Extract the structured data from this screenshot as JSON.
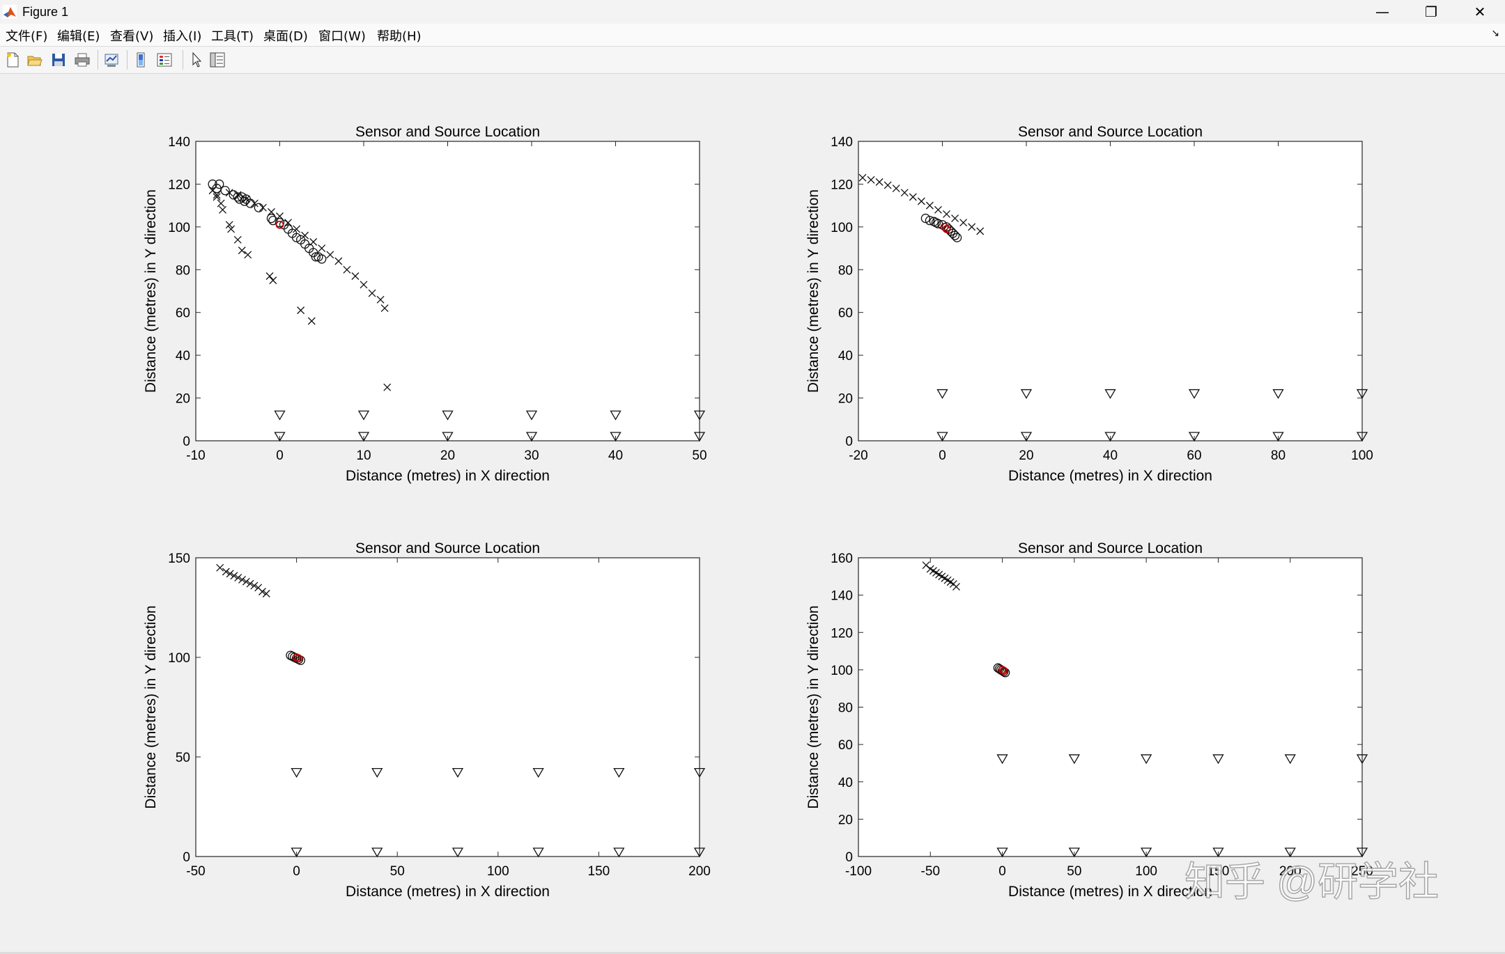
{
  "window": {
    "title": "Figure 1"
  },
  "menu": [
    "文件(F)",
    "编辑(E)",
    "查看(V)",
    "插入(I)",
    "工具(T)",
    "桌面(D)",
    "窗口(W)",
    "帮助(H)"
  ],
  "toolbar_icons": [
    "new-figure-icon",
    "open-file-icon",
    "save-icon",
    "print-icon",
    "link-plot-icon",
    "insert-colorbar-icon",
    "insert-legend-icon",
    "edit-plot-pointer-icon",
    "property-inspector-icon"
  ],
  "watermark": "知乎 @研学社",
  "chart_data": [
    {
      "type": "scatter",
      "title": "Sensor and Source Location",
      "xlabel": "Distance (metres) in X direction",
      "ylabel": "Distance (metres) in Y direction",
      "xlim": [
        -10,
        50
      ],
      "ylim": [
        0,
        140
      ],
      "xticks": [
        -10,
        0,
        10,
        20,
        30,
        40,
        50
      ],
      "yticks": [
        0,
        20,
        40,
        60,
        80,
        100,
        120,
        140
      ],
      "sensors": [
        [
          0,
          0
        ],
        [
          10,
          0
        ],
        [
          20,
          0
        ],
        [
          30,
          0
        ],
        [
          40,
          0
        ],
        [
          50,
          0
        ],
        [
          0,
          10
        ],
        [
          10,
          10
        ],
        [
          20,
          10
        ],
        [
          30,
          10
        ],
        [
          40,
          10
        ],
        [
          50,
          10
        ]
      ],
      "estimates_x": [
        [
          -7.5,
          114
        ],
        [
          -7,
          111
        ],
        [
          -6.8,
          108
        ],
        [
          -6,
          101
        ],
        [
          -5.8,
          99
        ],
        [
          -5,
          94
        ],
        [
          -4.5,
          89
        ],
        [
          -3.8,
          87
        ],
        [
          -1.2,
          77
        ],
        [
          -0.8,
          75
        ],
        [
          2.5,
          61
        ],
        [
          3.8,
          56
        ],
        [
          12.8,
          25
        ],
        [
          -8,
          117
        ],
        [
          -7.5,
          115
        ],
        [
          -6,
          116
        ],
        [
          -5,
          115
        ],
        [
          -4,
          113
        ],
        [
          -3,
          111
        ],
        [
          -2,
          109
        ],
        [
          -1,
          107
        ],
        [
          0,
          105
        ],
        [
          1,
          102
        ],
        [
          2,
          99
        ],
        [
          3,
          96
        ],
        [
          4,
          93
        ],
        [
          5,
          90
        ],
        [
          6,
          87
        ],
        [
          7,
          84
        ],
        [
          8,
          80
        ],
        [
          9,
          77
        ],
        [
          10,
          73
        ],
        [
          11,
          69
        ],
        [
          12,
          66
        ],
        [
          12.5,
          62
        ]
      ],
      "estimates_o": [
        [
          -8,
          120
        ],
        [
          -7.5,
          118
        ],
        [
          -7.2,
          120
        ],
        [
          -6.5,
          117
        ],
        [
          -5.5,
          115
        ],
        [
          -5,
          114
        ],
        [
          -4.8,
          113
        ],
        [
          -4.5,
          114
        ],
        [
          -4.2,
          112
        ],
        [
          -4,
          113
        ],
        [
          -3.5,
          111
        ],
        [
          -2.5,
          109
        ],
        [
          -1,
          104
        ],
        [
          -0.8,
          103
        ],
        [
          0,
          102
        ],
        [
          0.5,
          101
        ],
        [
          1,
          99
        ],
        [
          1.5,
          97
        ],
        [
          2,
          95
        ],
        [
          2.5,
          94
        ],
        [
          3,
          92
        ],
        [
          3.5,
          90
        ],
        [
          4,
          88
        ],
        [
          4.3,
          86
        ],
        [
          4.6,
          86
        ],
        [
          5,
          85
        ]
      ],
      "source": [
        [
          0,
          101
        ]
      ]
    },
    {
      "type": "scatter",
      "title": "Sensor and Source Location",
      "xlabel": "Distance (metres) in X direction",
      "ylabel": "Distance (metres) in Y direction",
      "xlim": [
        -20,
        100
      ],
      "ylim": [
        0,
        140
      ],
      "xticks": [
        -20,
        0,
        20,
        40,
        60,
        80,
        100
      ],
      "yticks": [
        0,
        20,
        40,
        60,
        80,
        100,
        120,
        140
      ],
      "sensors": [
        [
          0,
          0
        ],
        [
          20,
          0
        ],
        [
          40,
          0
        ],
        [
          60,
          0
        ],
        [
          80,
          0
        ],
        [
          100,
          0
        ],
        [
          0,
          20
        ],
        [
          20,
          20
        ],
        [
          40,
          20
        ],
        [
          60,
          20
        ],
        [
          80,
          20
        ],
        [
          100,
          20
        ]
      ],
      "estimates_x": [
        [
          -19,
          123
        ],
        [
          -17,
          122
        ],
        [
          -15,
          121
        ],
        [
          -13,
          119.5
        ],
        [
          -11,
          118
        ],
        [
          -9,
          116
        ],
        [
          -7,
          114
        ],
        [
          -5,
          112
        ],
        [
          -3,
          110
        ],
        [
          -1,
          108
        ],
        [
          1,
          106
        ],
        [
          3,
          104
        ],
        [
          5,
          102
        ],
        [
          7,
          100
        ],
        [
          9,
          98
        ]
      ],
      "estimates_o": [
        [
          -4,
          104
        ],
        [
          -3,
          103
        ],
        [
          -2,
          102.5
        ],
        [
          -1.5,
          102
        ],
        [
          -1,
          101.5
        ],
        [
          0,
          101
        ],
        [
          1,
          100
        ],
        [
          1.5,
          99
        ],
        [
          2,
          98
        ],
        [
          2.5,
          97
        ],
        [
          3,
          96
        ],
        [
          3.5,
          95
        ]
      ],
      "source": [
        [
          0.5,
          100
        ],
        [
          1,
          99
        ]
      ]
    },
    {
      "type": "scatter",
      "title": "Sensor and Source Location",
      "xlabel": "Distance (metres) in X direction",
      "ylabel": "Distance (metres) in Y direction",
      "xlim": [
        -50,
        200
      ],
      "ylim": [
        0,
        150
      ],
      "xticks": [
        -50,
        0,
        50,
        100,
        150,
        200
      ],
      "yticks": [
        0,
        50,
        100,
        150
      ],
      "sensors": [
        [
          0,
          0
        ],
        [
          40,
          0
        ],
        [
          80,
          0
        ],
        [
          120,
          0
        ],
        [
          160,
          0
        ],
        [
          200,
          0
        ],
        [
          0,
          40
        ],
        [
          40,
          40
        ],
        [
          80,
          40
        ],
        [
          120,
          40
        ],
        [
          160,
          40
        ],
        [
          200,
          40
        ]
      ],
      "estimates_x": [
        [
          -38,
          145
        ],
        [
          -35,
          143
        ],
        [
          -33,
          142
        ],
        [
          -31,
          141
        ],
        [
          -29,
          140
        ],
        [
          -27,
          139
        ],
        [
          -25,
          138
        ],
        [
          -23,
          137
        ],
        [
          -21,
          136
        ],
        [
          -19,
          135
        ],
        [
          -17,
          133
        ],
        [
          -15,
          132
        ]
      ],
      "estimates_o": [
        [
          -3,
          101
        ],
        [
          -2,
          100.5
        ],
        [
          -1,
          100
        ],
        [
          0,
          99.5
        ],
        [
          1,
          99
        ],
        [
          2,
          98.5
        ]
      ],
      "source": [
        [
          0,
          100
        ],
        [
          1,
          99.5
        ]
      ]
    },
    {
      "type": "scatter",
      "title": "Sensor and Source Location",
      "xlabel": "Distance (metres) in X direction",
      "ylabel": "Distance (metres) in Y direction",
      "xlim": [
        -100,
        250
      ],
      "ylim": [
        0,
        160
      ],
      "xticks": [
        -100,
        -50,
        0,
        50,
        100,
        150,
        200,
        250
      ],
      "yticks": [
        0,
        20,
        40,
        60,
        80,
        100,
        120,
        140,
        160
      ],
      "sensors": [
        [
          0,
          0
        ],
        [
          50,
          0
        ],
        [
          100,
          0
        ],
        [
          150,
          0
        ],
        [
          200,
          0
        ],
        [
          250,
          0
        ],
        [
          0,
          50
        ],
        [
          50,
          50
        ],
        [
          100,
          50
        ],
        [
          150,
          50
        ],
        [
          200,
          50
        ],
        [
          250,
          50
        ]
      ],
      "estimates_x": [
        [
          -53,
          156
        ],
        [
          -50,
          154
        ],
        [
          -48,
          153
        ],
        [
          -46,
          152
        ],
        [
          -44,
          151
        ],
        [
          -42,
          150
        ],
        [
          -40,
          149
        ],
        [
          -38,
          148
        ],
        [
          -36,
          147
        ],
        [
          -34,
          146
        ],
        [
          -32,
          144.5
        ]
      ],
      "estimates_o": [
        [
          -3,
          101
        ],
        [
          -2,
          100.5
        ],
        [
          -1,
          100
        ],
        [
          0,
          99.5
        ],
        [
          1,
          99
        ],
        [
          2,
          98.5
        ]
      ],
      "source": [
        [
          0,
          100
        ],
        [
          1,
          99.5
        ]
      ]
    }
  ]
}
